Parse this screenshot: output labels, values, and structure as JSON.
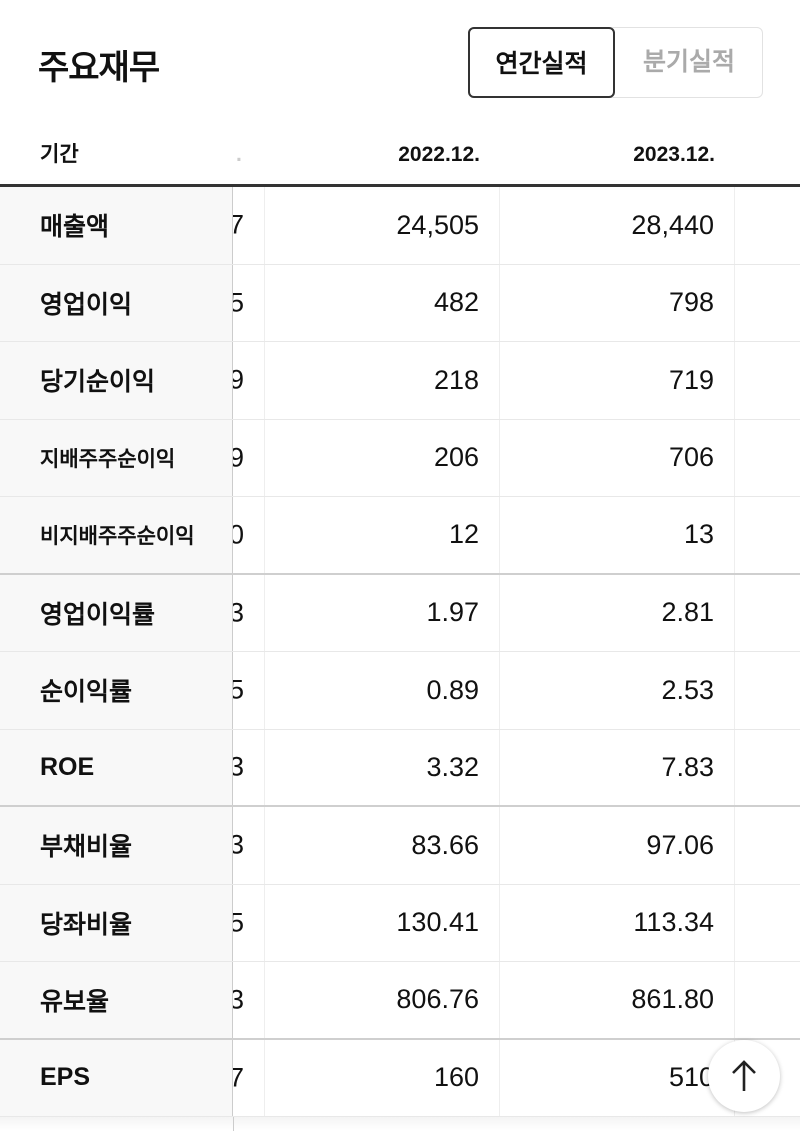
{
  "header": {
    "title": "주요재무"
  },
  "tabs": [
    {
      "label": "연간실적",
      "active": true
    },
    {
      "label": "분기실적",
      "active": false
    }
  ],
  "table": {
    "columns": {
      "label": "기간",
      "partial": ".",
      "col1": "2022.12.",
      "col2": "2023.12."
    },
    "rows": [
      {
        "label": "매출액",
        "partial": "7",
        "v1": "24,505",
        "v2": "28,440"
      },
      {
        "label": "영업이익",
        "partial": "5",
        "v1": "482",
        "v2": "798"
      },
      {
        "label": "당기순이익",
        "partial": "9",
        "v1": "218",
        "v2": "719"
      },
      {
        "label": "지배주주순이익",
        "partial": "9",
        "v1": "206",
        "v2": "706"
      },
      {
        "label": "비지배주주순이익",
        "partial": "0",
        "v1": "12",
        "v2": "13"
      },
      {
        "label": "영업이익률",
        "partial": "3",
        "v1": "1.97",
        "v2": "2.81"
      },
      {
        "label": "순이익률",
        "partial": "5",
        "v1": "0.89",
        "v2": "2.53"
      },
      {
        "label": "ROE",
        "partial": "3",
        "v1": "3.32",
        "v2": "7.83"
      },
      {
        "label": "부채비율",
        "partial": "3",
        "v1": "83.66",
        "v2": "97.06"
      },
      {
        "label": "당좌비율",
        "partial": "5",
        "v1": "130.41",
        "v2": "113.34"
      },
      {
        "label": "유보율",
        "partial": "3",
        "v1": "806.76",
        "v2": "861.80"
      },
      {
        "label": "EPS",
        "partial": "7",
        "v1": "160",
        "v2": "510"
      }
    ]
  },
  "scroll_top_icon": "arrow-up-icon"
}
